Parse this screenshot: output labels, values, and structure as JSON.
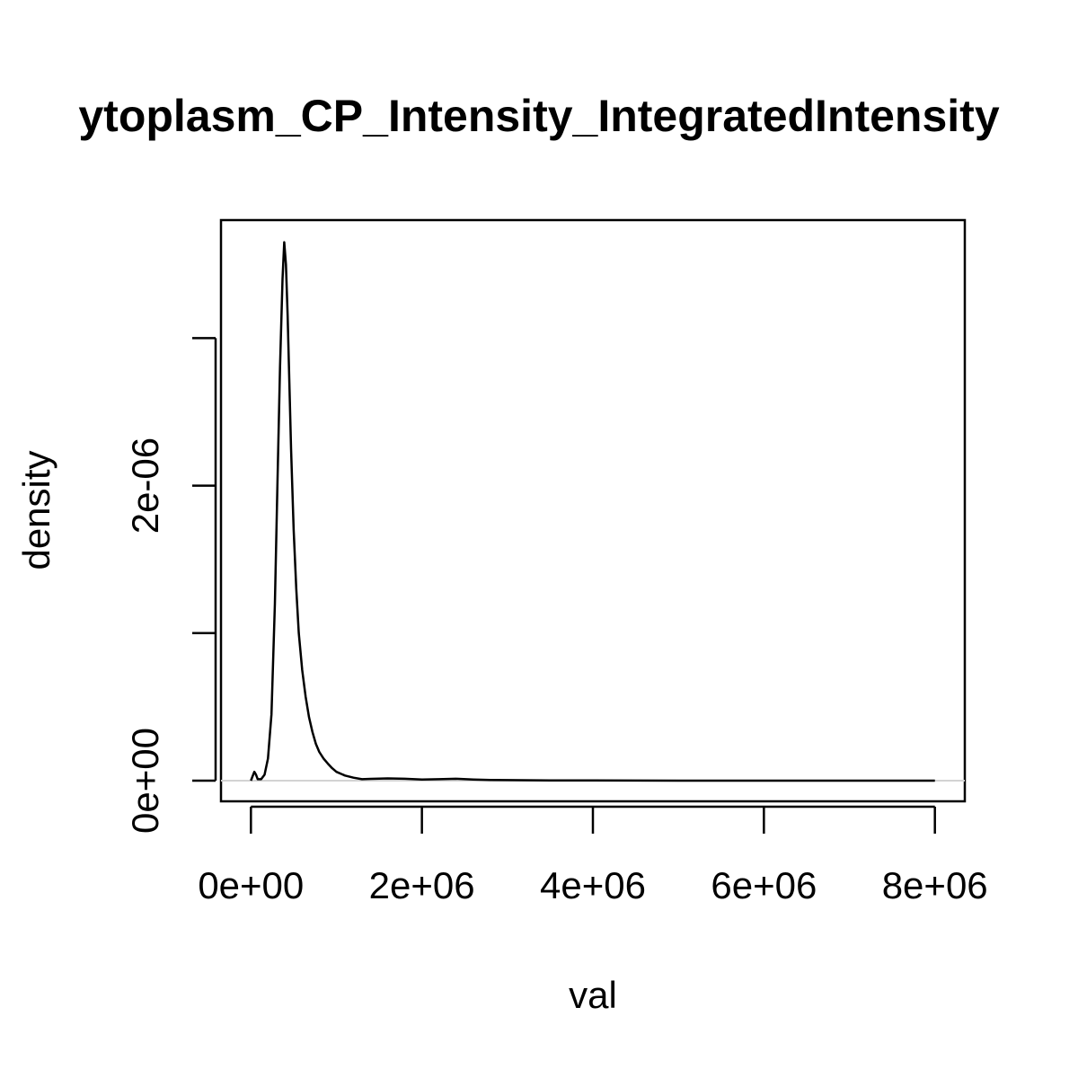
{
  "chart_data": {
    "type": "line",
    "title": "ytoplasm_CP_Intensity_IntegratedIntensity",
    "xlabel": "val",
    "ylabel": "density",
    "xlim": [
      -350000,
      8350000
    ],
    "ylim": [
      -1.4e-07,
      3.8e-06
    ],
    "x_ticks": [
      0,
      2000000,
      4000000,
      6000000,
      8000000
    ],
    "x_tick_labels": [
      "0e+00",
      "2e+06",
      "4e+06",
      "6e+06",
      "8e+06"
    ],
    "y_ticks": [
      0,
      1e-06,
      2e-06,
      3e-06
    ],
    "y_tick_labels": [
      "0e+00",
      "",
      "2e-06",
      ""
    ],
    "baseline": 0,
    "series": [
      {
        "x": [
          0,
          20000,
          40000,
          60000,
          80000,
          120000,
          160000,
          200000,
          240000,
          280000,
          310000,
          340000,
          370000,
          390000,
          410000,
          430000,
          450000,
          470000,
          500000,
          530000,
          560000,
          600000,
          640000,
          680000,
          720000,
          760000,
          800000,
          850000,
          900000,
          950000,
          1000000,
          1100000,
          1200000,
          1300000,
          1400000,
          1600000,
          1800000,
          2000000,
          2200000,
          2400000,
          2600000,
          2800000,
          3000000,
          3500000,
          4000000,
          5000000,
          6000000,
          7000000,
          8000000
        ],
        "y": [
          0,
          3e-08,
          6e-08,
          4e-08,
          1e-08,
          1e-08,
          4e-08,
          1.5e-07,
          4.5e-07,
          1.2e-06,
          2e-06,
          2.8e-06,
          3.4e-06,
          3.65e-06,
          3.5e-06,
          3.15e-06,
          2.7e-06,
          2.25e-06,
          1.7e-06,
          1.3e-06,
          1e-06,
          7.5e-07,
          5.7e-07,
          4.3e-07,
          3.3e-07,
          2.5e-07,
          1.95e-07,
          1.5e-07,
          1.15e-07,
          8.5e-08,
          6e-08,
          3.5e-08,
          2e-08,
          1e-08,
          1.2e-08,
          1.5e-08,
          1.3e-08,
          8e-09,
          1e-08,
          1.3e-08,
          8e-09,
          5e-09,
          4e-09,
          2e-09,
          1e-09,
          0,
          0,
          0,
          0
        ]
      }
    ]
  }
}
